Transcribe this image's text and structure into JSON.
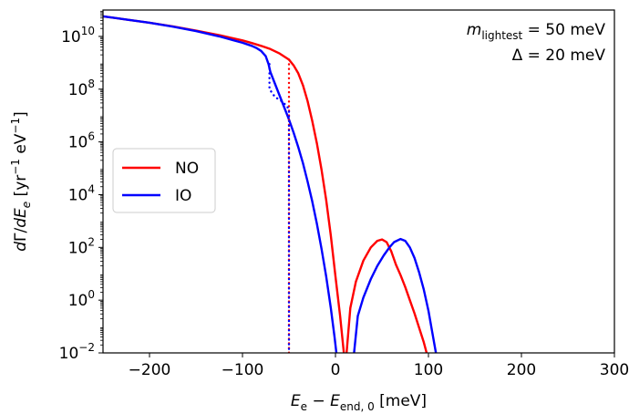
{
  "chart_data": {
    "type": "line",
    "xlabel": "E_e − E_end,0 [meV]",
    "ylabel": "dΓ/dE_e [yr⁻¹ eV⁻¹]",
    "xlim": [
      -250,
      300
    ],
    "ylim_log10": [
      -2,
      11
    ],
    "y_scale": "log",
    "grid": false,
    "x_ticks": [
      -200,
      -100,
      0,
      100,
      200,
      300
    ],
    "x_tick_labels": [
      "−200",
      "−100",
      "0",
      "100",
      "200",
      "300"
    ],
    "y_ticks_log10": [
      -2,
      0,
      2,
      4,
      6,
      8,
      10
    ],
    "y_tick_labels": [
      {
        "base": "10",
        "exp": "−2"
      },
      {
        "base": "10",
        "exp": "0"
      },
      {
        "base": "10",
        "exp": "2"
      },
      {
        "base": "10",
        "exp": "4"
      },
      {
        "base": "10",
        "exp": "6"
      },
      {
        "base": "10",
        "exp": "8"
      },
      {
        "base": "10",
        "exp": "10"
      }
    ],
    "annotations": {
      "line1_prefix": "m",
      "line1_sub": "lightest",
      "line1_suffix": " = 50 meV",
      "line2": "Δ = 20 meV"
    },
    "legend": {
      "position": "center-left",
      "entries": [
        "NO",
        "IO"
      ]
    },
    "colors": {
      "NO": "#ff0000",
      "IO": "#0000ff"
    },
    "series": [
      {
        "name": "NO",
        "color": "#ff0000",
        "style": "solid",
        "segments": [
          [
            [
              -250,
              10.76
            ],
            [
              -225,
              10.64
            ],
            [
              -200,
              10.52
            ],
            [
              -175,
              10.38
            ],
            [
              -150,
              10.22
            ],
            [
              -125,
              10.05
            ],
            [
              -100,
              9.85
            ],
            [
              -90,
              9.75
            ],
            [
              -80,
              9.64
            ],
            [
              -70,
              9.52
            ],
            [
              -60,
              9.35
            ],
            [
              -50,
              9.12
            ],
            [
              -45,
              8.9
            ],
            [
              -40,
              8.6
            ],
            [
              -35,
              8.15
            ],
            [
              -30,
              7.55
            ],
            [
              -25,
              6.8
            ],
            [
              -20,
              5.95
            ],
            [
              -15,
              4.95
            ],
            [
              -10,
              3.8
            ],
            [
              -5,
              2.45
            ],
            [
              0,
              0.9
            ],
            [
              5,
              -0.6
            ],
            [
              9,
              -2
            ]
          ],
          [
            [
              12,
              -2
            ],
            [
              16,
              -0.3
            ],
            [
              22,
              0.7
            ],
            [
              30,
              1.5
            ],
            [
              38,
              2.0
            ],
            [
              45,
              2.25
            ],
            [
              50,
              2.3
            ],
            [
              55,
              2.2
            ],
            [
              60,
              1.85
            ],
            [
              65,
              1.35
            ],
            [
              70,
              0.95
            ],
            [
              75,
              0.5
            ],
            [
              80,
              0.0
            ],
            [
              85,
              -0.5
            ],
            [
              90,
              -1.05
            ],
            [
              95,
              -1.6
            ],
            [
              98,
              -2
            ]
          ]
        ]
      },
      {
        "name": "IO",
        "color": "#0000ff",
        "style": "solid",
        "segments": [
          [
            [
              -250,
              10.76
            ],
            [
              -225,
              10.64
            ],
            [
              -200,
              10.52
            ],
            [
              -175,
              10.37
            ],
            [
              -150,
              10.2
            ],
            [
              -125,
              10.0
            ],
            [
              -100,
              9.76
            ],
            [
              -90,
              9.64
            ],
            [
              -85,
              9.56
            ],
            [
              -80,
              9.45
            ],
            [
              -75,
              9.25
            ],
            [
              -72,
              8.95
            ],
            [
              -70,
              8.65
            ],
            [
              -65,
              8.2
            ],
            [
              -60,
              7.75
            ],
            [
              -55,
              7.3
            ],
            [
              -50,
              6.85
            ],
            [
              -45,
              6.35
            ],
            [
              -40,
              5.8
            ],
            [
              -35,
              5.2
            ],
            [
              -30,
              4.5
            ],
            [
              -25,
              3.75
            ],
            [
              -20,
              2.9
            ],
            [
              -15,
              1.95
            ],
            [
              -10,
              0.9
            ],
            [
              -5,
              -0.3
            ],
            [
              -1,
              -1.4
            ],
            [
              1,
              -2
            ]
          ]
        ]
      },
      {
        "name": "IO-right",
        "color": "#0000ff",
        "style": "solid",
        "segments": [
          [
            [
              20,
              -2
            ],
            [
              24,
              -0.6
            ],
            [
              30,
              0.1
            ],
            [
              38,
              0.8
            ],
            [
              45,
              1.3
            ],
            [
              52,
              1.7
            ],
            [
              58,
              2.0
            ],
            [
              63,
              2.2
            ],
            [
              70,
              2.32
            ],
            [
              75,
              2.25
            ],
            [
              80,
              2.0
            ],
            [
              85,
              1.6
            ],
            [
              90,
              1.05
            ],
            [
              95,
              0.4
            ],
            [
              100,
              -0.4
            ],
            [
              104,
              -1.2
            ],
            [
              108,
              -2
            ]
          ]
        ]
      },
      {
        "name": "NO-threshold",
        "color": "#ff0000",
        "style": "dotted",
        "segments": [
          [
            [
              -50,
              9.12
            ],
            [
              -50,
              -2
            ]
          ]
        ]
      },
      {
        "name": "IO-threshold",
        "color": "#0000ff",
        "style": "dotted",
        "segments": [
          [
            [
              -71,
              8.95
            ],
            [
              -71,
              8.0
            ],
            [
              -65,
              7.7
            ],
            [
              -58,
              7.55
            ],
            [
              -52,
              7.35
            ],
            [
              -50,
              7.2
            ],
            [
              -50,
              -2
            ]
          ]
        ]
      }
    ]
  }
}
